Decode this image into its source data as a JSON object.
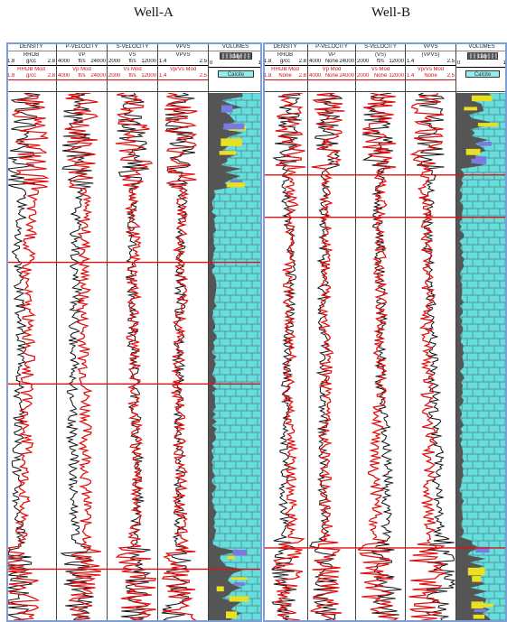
{
  "titles": {
    "well_a": "Well-A",
    "well_b": "Well-B"
  },
  "colors": {
    "log_red": "#e01010",
    "log_black": "#111111",
    "marker": "#e01010",
    "calcite": "#66dede",
    "clay": "#555555",
    "sand": "#e8e020",
    "dolomite": "#7a7ae0",
    "frame": "#7f9ed6"
  },
  "well_a": {
    "tracks": [
      {
        "name": "DENSITY",
        "curve1": "RHOB",
        "scale1": [
          "1.8",
          "g/cc",
          "2.8"
        ],
        "curve2": "RHOB Mod",
        "scale2": [
          "1.8",
          "g/cc",
          "2.8"
        ]
      },
      {
        "name": "P-VELOCITY",
        "curve1": "VP",
        "scale1": [
          "4000",
          "ft/s",
          "24000"
        ],
        "curve2": "Vp Mod",
        "scale2": [
          "4000",
          "ft/s",
          "24000"
        ]
      },
      {
        "name": "S-VELOCITY",
        "curve1": "VS",
        "scale1": [
          "2000",
          "ft/s",
          "12000"
        ],
        "curve2": "Vs Mod",
        "scale2": [
          "2000",
          "ft/s",
          "12000"
        ]
      },
      {
        "name": "VPVS",
        "curve1": "VPVS",
        "scale1": [
          "1.4",
          "",
          "2.5"
        ],
        "curve2": "Vp/Vs Mod",
        "scale2": [
          "1.4",
          "",
          "2.5"
        ]
      },
      {
        "name": "VOLUMES",
        "legend1": "clay",
        "legend2": "Calcite",
        "scale_left": "0",
        "scale_right": "1"
      }
    ],
    "markers": [
      0.32,
      0.55,
      0.9
    ]
  },
  "well_b": {
    "tracks": [
      {
        "name": "DENSITY",
        "curve1": "RHOB",
        "scale1": [
          "1.8",
          "g/cc",
          "2.8"
        ],
        "curve2": "RHOB Mod",
        "scale2": [
          "1.8",
          "None",
          "2.8"
        ]
      },
      {
        "name": "P-VELOCITY",
        "curve1": "VP",
        "scale1": [
          "4000",
          "None",
          "24000"
        ],
        "curve2": "Vp Mod",
        "scale2": [
          "4000",
          "None",
          "24000"
        ]
      },
      {
        "name": "S-VELOCITY",
        "curve1": "(VS)",
        "scale1": [
          "2000",
          "ft/s",
          "12000"
        ],
        "curve2": "Vs Mod",
        "scale2": [
          "2000",
          "None",
          "12000"
        ]
      },
      {
        "name": "VPVS",
        "curve1": "(VPVS)",
        "scale1": [
          "1.4",
          "",
          "2.5"
        ],
        "curve2": "Vp/Vs Mod",
        "scale2": [
          "1.4",
          "None",
          "2.5"
        ]
      },
      {
        "name": "VOLUMES",
        "legend1": "clay",
        "legend2": "Calcite",
        "scale_left": "0",
        "scale_right": "1"
      }
    ],
    "markers": [
      0.155,
      0.235,
      0.86
    ]
  }
}
